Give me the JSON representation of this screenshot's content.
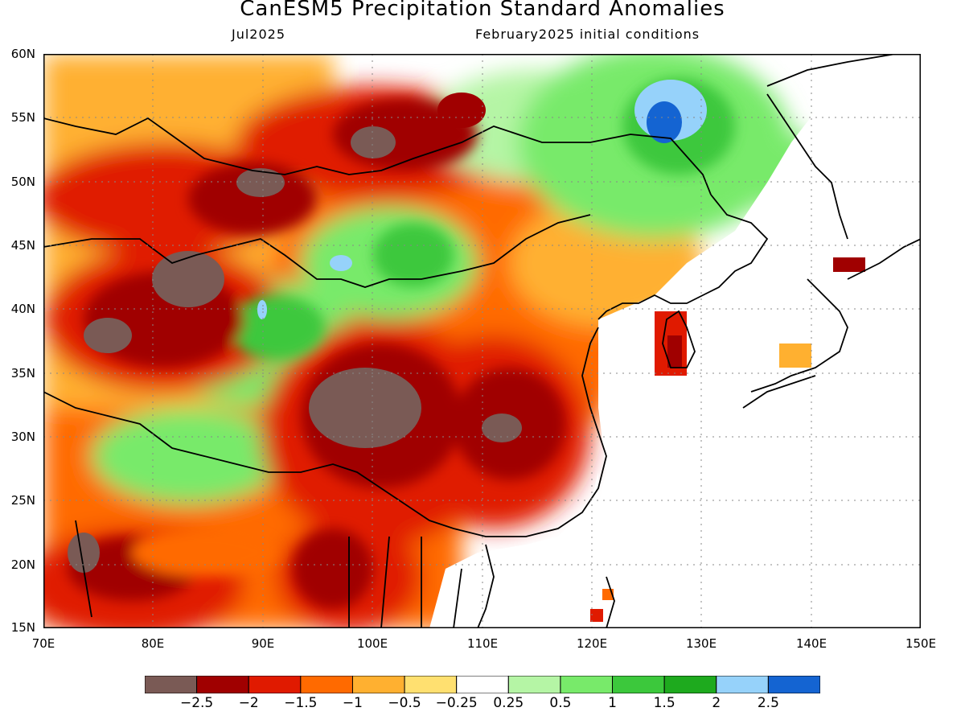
{
  "header": {
    "title": "CanESM5 Precipitation Standard Anomalies",
    "valid_month": "Jul2025",
    "init_conditions": "February2025 initial conditions"
  },
  "map": {
    "lat_labels": [
      "60N",
      "55N",
      "50N",
      "45N",
      "40N",
      "35N",
      "30N",
      "25N",
      "20N",
      "15N"
    ],
    "lon_labels": [
      "70E",
      "80E",
      "90E",
      "100E",
      "110E",
      "120E",
      "130E",
      "140E",
      "150E"
    ],
    "lon_range": [
      70,
      150
    ],
    "lat_range": [
      15,
      60
    ]
  },
  "colorbar": {
    "colors": [
      "#7a5a55",
      "#a00000",
      "#e01a00",
      "#ff6a00",
      "#ffb030",
      "#ffe070",
      "#ffffff",
      "#b5f5a5",
      "#78ea6a",
      "#3cc83c",
      "#1eaa1e",
      "#96d2fa",
      "#1464d2"
    ],
    "labels": [
      "−2.5",
      "−2",
      "−1.5",
      "−1",
      "−0.5",
      "−0.25",
      "0.25",
      "0.5",
      "1",
      "1.5",
      "2",
      "2.5"
    ]
  }
}
